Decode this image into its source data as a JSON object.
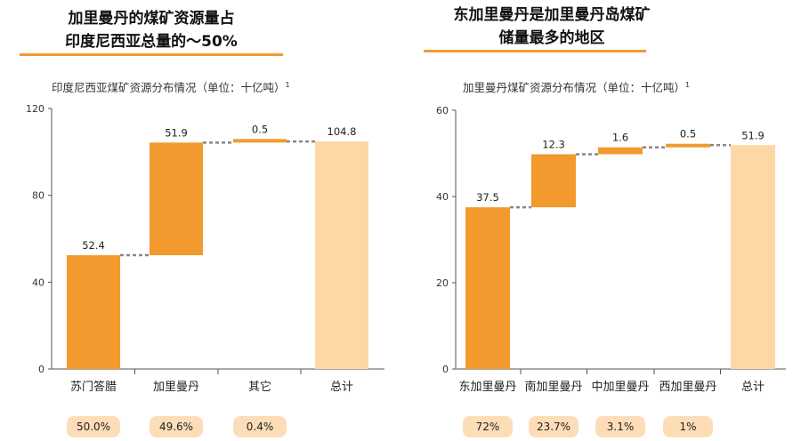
{
  "panels": [
    {
      "title": "加里曼丹的煤矿资源量占\n印度尼西亚总量的～50%",
      "subtitle": "印度尼西亚煤矿资源分布情况（单位：十亿吨）",
      "footnote": "1",
      "percentages": [
        "50.0%",
        "49.6%",
        "0.4%"
      ]
    },
    {
      "title": "东加里曼丹是加里曼丹岛煤矿\n储量最多的地区",
      "subtitle": "加里曼丹煤矿资源分布情况（单位：十亿吨）",
      "footnote": "1",
      "percentages": [
        "72%",
        "23.7%",
        "3.1%",
        "1%"
      ]
    }
  ],
  "chart_data": [
    {
      "type": "bar",
      "subtype": "waterfall",
      "categories": [
        "苏门答腊",
        "加里曼丹",
        "其它",
        "总计"
      ],
      "values": [
        52.4,
        51.9,
        0.5,
        104.8
      ],
      "value_labels": [
        "52.4",
        "51.9",
        "0.5",
        "104.8"
      ],
      "is_total": [
        false,
        false,
        false,
        true
      ],
      "ylim": [
        0,
        120
      ],
      "yticks": [
        0,
        40,
        80,
        120
      ],
      "colors": {
        "step": "#F29A2E",
        "total": "#FDD7A6",
        "connector": "#888888"
      }
    },
    {
      "type": "bar",
      "subtype": "waterfall",
      "categories": [
        "东加里曼丹",
        "南加里曼丹",
        "中加里曼丹",
        "西加里曼丹",
        "总计"
      ],
      "values": [
        37.5,
        12.3,
        1.6,
        0.5,
        51.9
      ],
      "value_labels": [
        "37.5",
        "12.3",
        "1.6",
        "0.5",
        "51.9"
      ],
      "is_total": [
        false,
        false,
        false,
        false,
        true
      ],
      "ylim": [
        0,
        60
      ],
      "yticks": [
        0,
        20,
        40,
        60
      ],
      "colors": {
        "step": "#F29A2E",
        "total": "#FDD7A6",
        "connector": "#888888"
      }
    }
  ]
}
